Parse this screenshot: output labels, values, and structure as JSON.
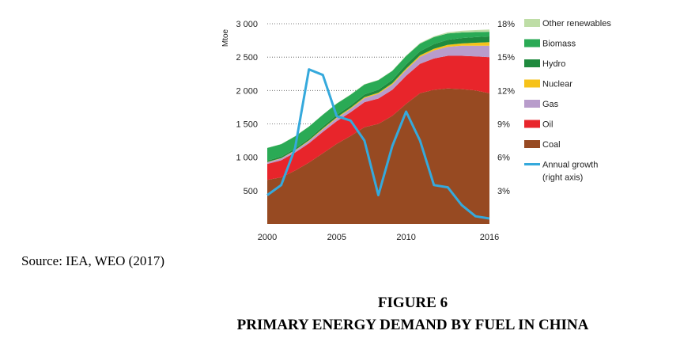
{
  "chart_data": {
    "type": "area",
    "ylabel": "Mtoe",
    "x_ticks": [
      "2000",
      "2005",
      "2010",
      "2016"
    ],
    "y_left_ticks": [
      "500",
      "1 000",
      "1 500",
      "2 000",
      "2 500",
      "3 000"
    ],
    "y_right_ticks": [
      "3%",
      "6%",
      "9%",
      "12%",
      "15%",
      "18%"
    ],
    "ylim_left": [
      0,
      3000
    ],
    "ylim_right": [
      0,
      18
    ],
    "xlim": [
      2000,
      2016
    ],
    "grid": "dotted horizontal",
    "legend_position": "right",
    "x": [
      2000,
      2001,
      2002,
      2003,
      2004,
      2005,
      2006,
      2007,
      2008,
      2009,
      2010,
      2011,
      2012,
      2013,
      2014,
      2015,
      2016
    ],
    "series": [
      {
        "name": "Coal",
        "color": "#974a22",
        "kind": "stacked-area",
        "values": [
          660,
          700,
          800,
          920,
          1060,
          1200,
          1320,
          1450,
          1500,
          1620,
          1800,
          1960,
          2010,
          2030,
          2020,
          2000,
          1960
        ]
      },
      {
        "name": "Oil",
        "color": "#e8252b",
        "kind": "stacked-area",
        "values": [
          240,
          255,
          270,
          290,
          320,
          340,
          355,
          375,
          380,
          390,
          420,
          440,
          470,
          490,
          500,
          510,
          540
        ]
      },
      {
        "name": "Gas",
        "color": "#b89ccb",
        "kind": "stacked-area",
        "values": [
          25,
          28,
          30,
          35,
          40,
          45,
          50,
          60,
          70,
          80,
          90,
          105,
          120,
          135,
          150,
          160,
          170
        ]
      },
      {
        "name": "Nuclear",
        "color": "#f6c21a",
        "kind": "stacked-area",
        "values": [
          5,
          5,
          6,
          10,
          12,
          14,
          15,
          16,
          17,
          18,
          19,
          22,
          25,
          30,
          35,
          45,
          55
        ]
      },
      {
        "name": "Hydro",
        "color": "#1f8a3e",
        "kind": "stacked-area",
        "values": [
          20,
          22,
          24,
          25,
          30,
          35,
          38,
          40,
          45,
          50,
          60,
          60,
          70,
          75,
          80,
          85,
          85
        ]
      },
      {
        "name": "Biomass",
        "color": "#2aaa55",
        "kind": "stacked-area",
        "values": [
          190,
          187,
          184,
          180,
          175,
          170,
          160,
          150,
          142,
          135,
          127,
          115,
          105,
          95,
          85,
          75,
          70
        ]
      },
      {
        "name": "Other renewables",
        "color": "#bedda6",
        "kind": "stacked-area",
        "values": [
          2,
          2,
          2,
          2,
          2,
          3,
          3,
          4,
          5,
          6,
          8,
          10,
          12,
          18,
          25,
          30,
          35
        ]
      }
    ],
    "line_series": {
      "name": "Annual growth",
      "axis": "right",
      "color": "#35a9dc",
      "x": [
        2000,
        2001,
        2002,
        2003,
        2004,
        2005,
        2006,
        2007,
        2008,
        2009,
        2010,
        2011,
        2012,
        2013,
        2014,
        2015,
        2016
      ],
      "values": [
        2.6,
        3.5,
        6.8,
        13.9,
        13.4,
        9.7,
        9.3,
        7.5,
        2.6,
        7.0,
        10.1,
        7.5,
        3.5,
        3.3,
        1.7,
        0.7,
        0.5
      ]
    },
    "legend": [
      {
        "label": "Other renewables",
        "color": "#bedda6",
        "kind": "swatch"
      },
      {
        "label": "Biomass",
        "color": "#2aaa55",
        "kind": "swatch"
      },
      {
        "label": "Hydro",
        "color": "#1f8a3e",
        "kind": "swatch"
      },
      {
        "label": "Nuclear",
        "color": "#f6c21a",
        "kind": "swatch"
      },
      {
        "label": "Gas",
        "color": "#b89ccb",
        "kind": "swatch"
      },
      {
        "label": "Oil",
        "color": "#e8252b",
        "kind": "swatch"
      },
      {
        "label": "Coal",
        "color": "#974a22",
        "kind": "swatch"
      },
      {
        "label": "Annual growth",
        "label2": "(right axis)",
        "color": "#35a9dc",
        "kind": "line"
      }
    ]
  },
  "source": "Source: IEA, WEO (2017)",
  "figure_number": "FIGURE 6",
  "figure_title": "PRIMARY ENERGY DEMAND BY FUEL IN CHINA"
}
